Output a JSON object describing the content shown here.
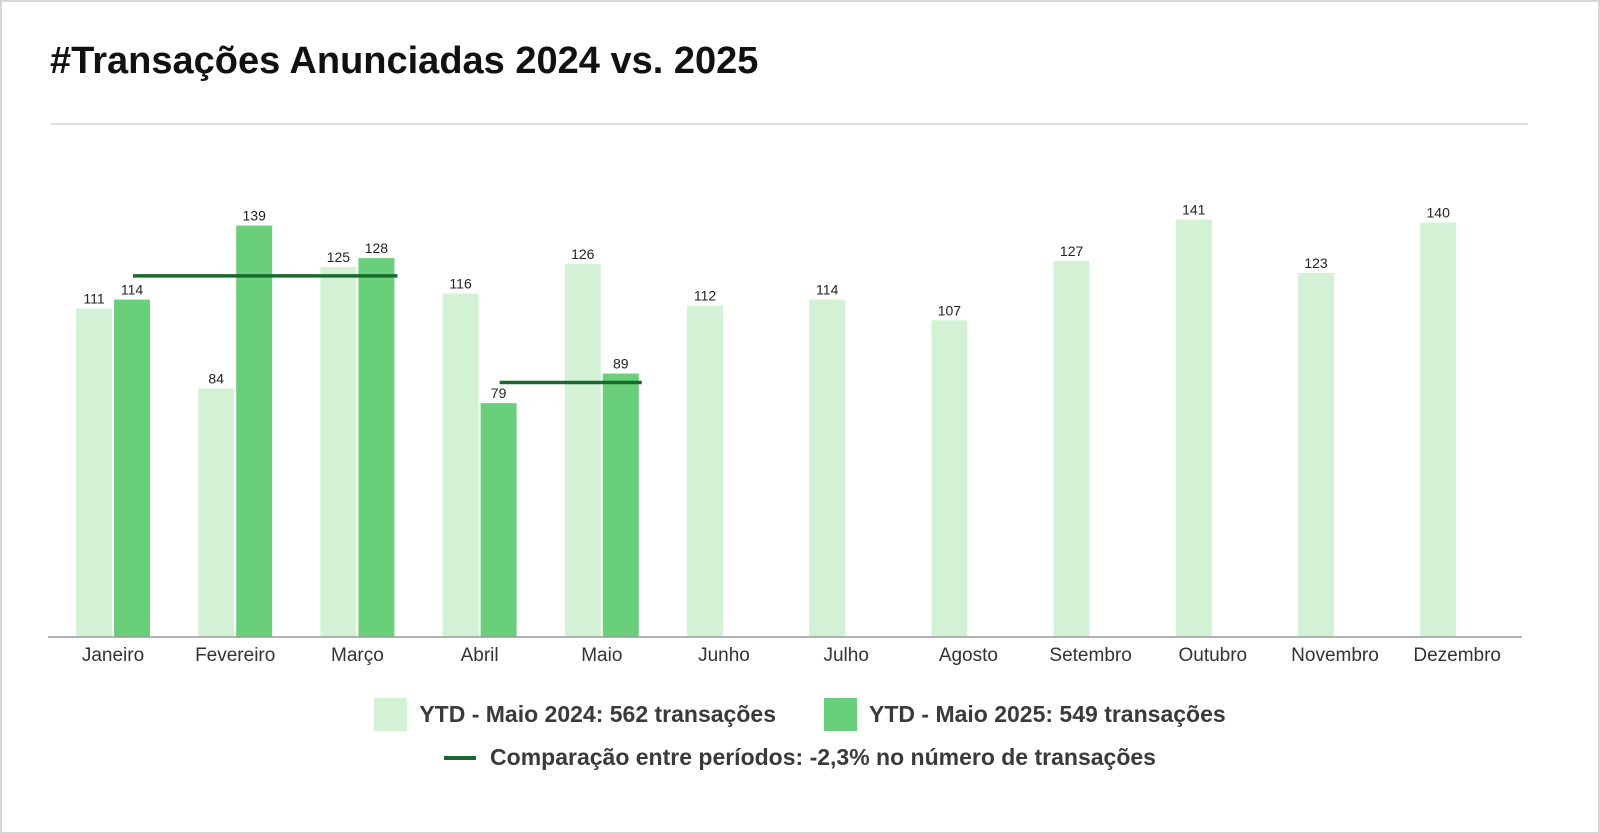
{
  "title": "#Transações Anunciadas 2024 vs. 2025",
  "colors": {
    "series_2024": "#d3f2d5",
    "series_2025": "#69cf7a",
    "comparison_line": "#1a6a2e",
    "axis": "#999999",
    "label_text": "#222222"
  },
  "chart_data": {
    "type": "bar",
    "categories": [
      "Janeiro",
      "Fevereiro",
      "Março",
      "Abril",
      "Maio",
      "Junho",
      "Julho",
      "Agosto",
      "Setembro",
      "Outubro",
      "Novembro",
      "Dezembro"
    ],
    "series": [
      {
        "name": "YTD - Maio 2024: 562 transações",
        "values": [
          111,
          84,
          125,
          116,
          126,
          112,
          114,
          107,
          127,
          141,
          123,
          140
        ]
      },
      {
        "name": "YTD - Maio 2025: 549 transações",
        "values": [
          114,
          139,
          128,
          79,
          89,
          null,
          null,
          null,
          null,
          null,
          null,
          null
        ]
      }
    ],
    "comparison_lines": [
      {
        "from_category": "Janeiro",
        "to_category": "Março",
        "value": 122
      },
      {
        "from_category": "Abril",
        "to_category": "Maio",
        "value": 86
      }
    ],
    "comparison_label": "Comparação entre períodos: -2,3% no número de transações",
    "ylim": [
      0,
      148
    ],
    "grid": false,
    "legend_position": "bottom"
  }
}
